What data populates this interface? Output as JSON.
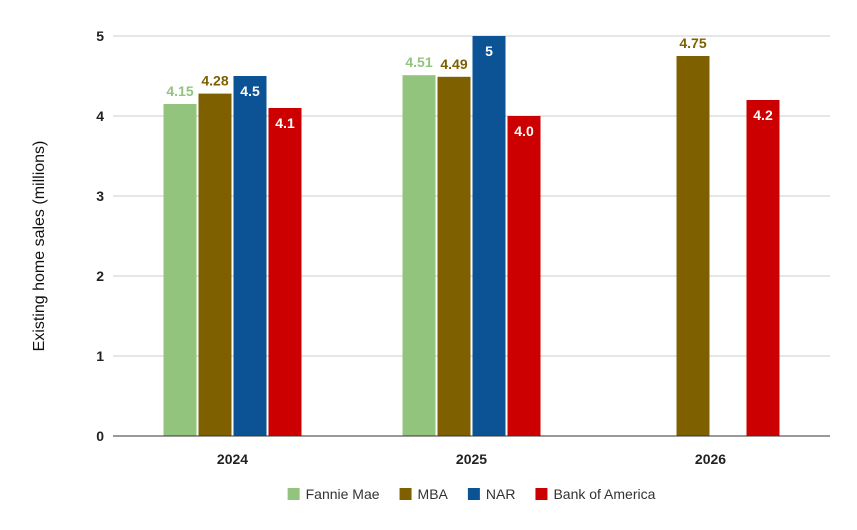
{
  "chart_data": {
    "type": "bar",
    "title": "",
    "xlabel": "",
    "ylabel": "Existing home sales (millions)",
    "categories": [
      "2024",
      "2025",
      "2026"
    ],
    "ylim": [
      0,
      5
    ],
    "yticks": [
      "0",
      "1",
      "2",
      "3",
      "4",
      "5"
    ],
    "grid": true,
    "legend_position": "bottom",
    "series": [
      {
        "name": "Fannie Mae",
        "color": "#93c47d",
        "label_color": "#93c47d",
        "label_inside": false,
        "values": [
          4.15,
          4.51,
          null
        ],
        "labels": [
          "4.15",
          "4.51",
          null
        ]
      },
      {
        "name": "MBA",
        "color": "#7f6000",
        "label_color": "#7f6000",
        "label_inside": false,
        "values": [
          4.28,
          4.49,
          4.75
        ],
        "labels": [
          "4.28",
          "4.49",
          "4.75"
        ]
      },
      {
        "name": "NAR",
        "color": "#0b5394",
        "label_color": "#ffffff",
        "label_inside": true,
        "values": [
          4.5,
          5,
          null
        ],
        "labels": [
          "4.5",
          "5",
          null
        ]
      },
      {
        "name": "Bank of America",
        "color": "#cc0000",
        "label_color": "#ffffff",
        "label_inside": true,
        "values": [
          4.1,
          4.0,
          4.2
        ],
        "labels": [
          "4.1",
          "4.0",
          "4.2"
        ]
      }
    ]
  }
}
